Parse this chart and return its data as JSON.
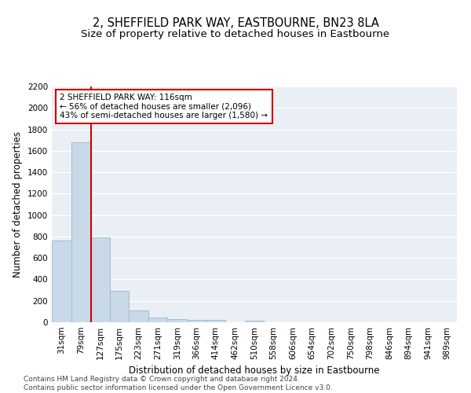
{
  "title": "2, SHEFFIELD PARK WAY, EASTBOURNE, BN23 8LA",
  "subtitle": "Size of property relative to detached houses in Eastbourne",
  "xlabel": "Distribution of detached houses by size in Eastbourne",
  "ylabel": "Number of detached properties",
  "bar_labels": [
    "31sqm",
    "79sqm",
    "127sqm",
    "175sqm",
    "223sqm",
    "271sqm",
    "319sqm",
    "366sqm",
    "414sqm",
    "462sqm",
    "510sqm",
    "558sqm",
    "606sqm",
    "654sqm",
    "702sqm",
    "750sqm",
    "798sqm",
    "846sqm",
    "894sqm",
    "941sqm",
    "989sqm"
  ],
  "bar_values": [
    760,
    1680,
    790,
    295,
    110,
    42,
    30,
    22,
    20,
    0,
    18,
    0,
    0,
    0,
    0,
    0,
    0,
    0,
    0,
    0,
    0
  ],
  "bar_color": "#c9d9e8",
  "bar_edgecolor": "#a0bcd0",
  "vline_x": 1.55,
  "vline_color": "#cc0000",
  "annotation_text": "2 SHEFFIELD PARK WAY: 116sqm\n← 56% of detached houses are smaller (2,096)\n43% of semi-detached houses are larger (1,580) →",
  "annotation_box_color": "#ffffff",
  "annotation_border_color": "#cc0000",
  "ylim": [
    0,
    2200
  ],
  "yticks": [
    0,
    200,
    400,
    600,
    800,
    1000,
    1200,
    1400,
    1600,
    1800,
    2000,
    2200
  ],
  "bg_color": "#eaeff5",
  "footer": "Contains HM Land Registry data © Crown copyright and database right 2024.\nContains public sector information licensed under the Open Government Licence v3.0.",
  "title_fontsize": 10.5,
  "subtitle_fontsize": 9.5,
  "ylabel_fontsize": 8.5,
  "xlabel_fontsize": 8.5,
  "tick_fontsize": 7.5,
  "footer_fontsize": 6.5
}
